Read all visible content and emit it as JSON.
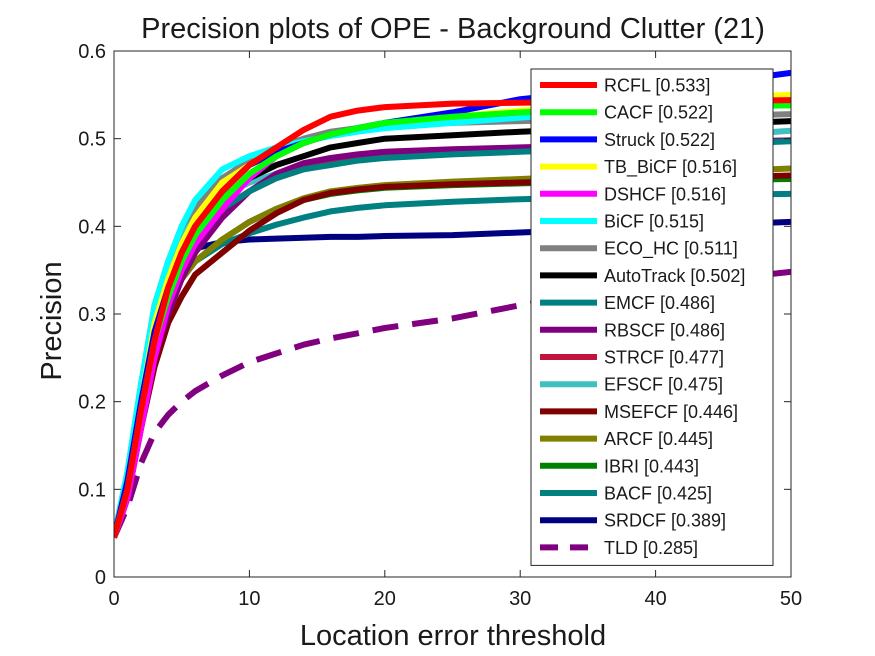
{
  "chart_data": {
    "type": "line",
    "title": "Precision plots of OPE - Background Clutter (21)",
    "xlabel": "Location error threshold",
    "ylabel": "Precision",
    "xlim": [
      0,
      50
    ],
    "ylim": [
      0,
      0.6
    ],
    "xticks": [
      "0",
      "10",
      "20",
      "30",
      "40",
      "50"
    ],
    "yticks": [
      "0",
      "0.1",
      "0.2",
      "0.3",
      "0.4",
      "0.5",
      "0.6"
    ],
    "xtick_values": [
      0,
      10,
      20,
      30,
      40,
      50
    ],
    "ytick_values": [
      0,
      0.1,
      0.2,
      0.3,
      0.4,
      0.5,
      0.6
    ],
    "grid": false,
    "legend_position": "top-right",
    "series": [
      {
        "name": "RCFL [0.533]",
        "color": "#ff0000",
        "dashed": false,
        "x": [
          0,
          1,
          2,
          3,
          4,
          5,
          6,
          8,
          10,
          12,
          14,
          16,
          18,
          20,
          25,
          30,
          35,
          40,
          45,
          50
        ],
        "y": [
          0.045,
          0.1,
          0.19,
          0.27,
          0.33,
          0.37,
          0.4,
          0.44,
          0.47,
          0.49,
          0.51,
          0.525,
          0.532,
          0.536,
          0.54,
          0.541,
          0.542,
          0.543,
          0.543,
          0.544
        ]
      },
      {
        "name": "CACF [0.522]",
        "color": "#00ff00",
        "dashed": false,
        "x": [
          0,
          1,
          2,
          3,
          4,
          5,
          6,
          8,
          10,
          12,
          14,
          16,
          18,
          20,
          25,
          30,
          35,
          40,
          45,
          50
        ],
        "y": [
          0.045,
          0.1,
          0.19,
          0.27,
          0.32,
          0.36,
          0.39,
          0.43,
          0.46,
          0.48,
          0.495,
          0.505,
          0.512,
          0.518,
          0.525,
          0.53,
          0.533,
          0.535,
          0.537,
          0.538
        ]
      },
      {
        "name": "Struck [0.522]",
        "color": "#0000ff",
        "dashed": false,
        "x": [
          0,
          1,
          2,
          3,
          4,
          5,
          6,
          8,
          10,
          12,
          14,
          16,
          18,
          20,
          25,
          30,
          35,
          40,
          45,
          50
        ],
        "y": [
          0.045,
          0.11,
          0.2,
          0.28,
          0.33,
          0.37,
          0.4,
          0.44,
          0.47,
          0.485,
          0.495,
          0.505,
          0.512,
          0.518,
          0.53,
          0.545,
          0.553,
          0.558,
          0.565,
          0.575
        ]
      },
      {
        "name": "TB_BiCF [0.516]",
        "color": "#ffff00",
        "dashed": false,
        "x": [
          0,
          1,
          2,
          3,
          4,
          5,
          6,
          8,
          10,
          12,
          14,
          16,
          18,
          20,
          25,
          30,
          35,
          40,
          45,
          50
        ],
        "y": [
          0.045,
          0.11,
          0.2,
          0.29,
          0.34,
          0.38,
          0.41,
          0.45,
          0.47,
          0.485,
          0.495,
          0.505,
          0.512,
          0.518,
          0.525,
          0.532,
          0.538,
          0.542,
          0.546,
          0.55
        ]
      },
      {
        "name": "DSHCF [0.516]",
        "color": "#ff00ff",
        "dashed": false,
        "x": [
          0,
          1,
          2,
          3,
          4,
          5,
          6,
          8,
          10,
          12,
          14,
          16,
          18,
          20,
          25,
          30,
          35,
          40,
          45,
          50
        ],
        "y": [
          0.045,
          0.09,
          0.17,
          0.25,
          0.31,
          0.35,
          0.38,
          0.42,
          0.455,
          0.48,
          0.495,
          0.505,
          0.512,
          0.518,
          0.525,
          0.53,
          0.534,
          0.537,
          0.54,
          0.543
        ]
      },
      {
        "name": "BiCF [0.515]",
        "color": "#00ffff",
        "dashed": false,
        "x": [
          0,
          1,
          2,
          3,
          4,
          5,
          6,
          8,
          10,
          12,
          14,
          16,
          18,
          20,
          25,
          30,
          35,
          40,
          45,
          50
        ],
        "y": [
          0.045,
          0.12,
          0.22,
          0.31,
          0.36,
          0.4,
          0.43,
          0.465,
          0.48,
          0.49,
          0.497,
          0.503,
          0.508,
          0.512,
          0.518,
          0.524,
          0.53,
          0.535,
          0.54,
          0.545
        ]
      },
      {
        "name": "ECO_HC [0.511]",
        "color": "#808080",
        "dashed": false,
        "x": [
          0,
          1,
          2,
          3,
          4,
          5,
          6,
          8,
          10,
          12,
          14,
          16,
          18,
          20,
          25,
          30,
          35,
          40,
          45,
          50
        ],
        "y": [
          0.045,
          0.12,
          0.22,
          0.31,
          0.36,
          0.4,
          0.42,
          0.455,
          0.475,
          0.49,
          0.5,
          0.508,
          0.512,
          0.515,
          0.518,
          0.52,
          0.522,
          0.524,
          0.526,
          0.528
        ]
      },
      {
        "name": "AutoTrack [0.502]",
        "color": "#000000",
        "dashed": false,
        "x": [
          0,
          1,
          2,
          3,
          4,
          5,
          6,
          8,
          10,
          12,
          14,
          16,
          18,
          20,
          25,
          30,
          35,
          40,
          45,
          50
        ],
        "y": [
          0.045,
          0.1,
          0.19,
          0.27,
          0.32,
          0.36,
          0.39,
          0.43,
          0.455,
          0.47,
          0.48,
          0.49,
          0.495,
          0.5,
          0.504,
          0.508,
          0.511,
          0.514,
          0.517,
          0.52
        ]
      },
      {
        "name": "EMCF [0.486]",
        "color": "#008080",
        "dashed": false,
        "x": [
          0,
          1,
          2,
          3,
          4,
          5,
          6,
          8,
          10,
          12,
          14,
          16,
          18,
          20,
          25,
          30,
          35,
          40,
          45,
          50
        ],
        "y": [
          0.045,
          0.1,
          0.19,
          0.27,
          0.32,
          0.36,
          0.39,
          0.42,
          0.44,
          0.455,
          0.465,
          0.47,
          0.475,
          0.478,
          0.482,
          0.485,
          0.488,
          0.491,
          0.494,
          0.497
        ]
      },
      {
        "name": "RBSCF [0.486]",
        "color": "#800080",
        "dashed": false,
        "x": [
          0,
          1,
          2,
          3,
          4,
          5,
          6,
          8,
          10,
          12,
          14,
          16,
          18,
          20,
          25,
          30,
          35,
          40,
          45,
          50
        ],
        "y": [
          0.045,
          0.09,
          0.17,
          0.25,
          0.3,
          0.34,
          0.37,
          0.41,
          0.44,
          0.46,
          0.472,
          0.478,
          0.482,
          0.485,
          0.488,
          0.49,
          0.492,
          0.494,
          0.496,
          0.498
        ]
      },
      {
        "name": "STRCF [0.477]",
        "color": "#c0143c",
        "dashed": false,
        "x": [
          0,
          1,
          2,
          3,
          4,
          5,
          6,
          8,
          10,
          12,
          14,
          16,
          18,
          20,
          25,
          30,
          35,
          40,
          45,
          50
        ],
        "y": [
          0.045,
          0.1,
          0.19,
          0.27,
          0.32,
          0.355,
          0.385,
          0.42,
          0.44,
          0.455,
          0.465,
          0.472,
          0.478,
          0.482,
          0.486,
          0.489,
          0.492,
          0.494,
          0.496,
          0.498
        ]
      },
      {
        "name": "EFSCF [0.475]",
        "color": "#40c0c0",
        "dashed": false,
        "x": [
          0,
          1,
          2,
          3,
          4,
          5,
          6,
          8,
          10,
          12,
          14,
          16,
          18,
          20,
          25,
          30,
          35,
          40,
          45,
          50
        ],
        "y": [
          0.045,
          0.12,
          0.22,
          0.31,
          0.36,
          0.39,
          0.41,
          0.435,
          0.45,
          0.46,
          0.467,
          0.472,
          0.476,
          0.479,
          0.484,
          0.489,
          0.494,
          0.499,
          0.504,
          0.509
        ]
      },
      {
        "name": "MSEFCF [0.446]",
        "color": "#800000",
        "dashed": false,
        "x": [
          0,
          1,
          2,
          3,
          4,
          5,
          6,
          8,
          10,
          12,
          14,
          16,
          18,
          20,
          25,
          30,
          35,
          40,
          45,
          50
        ],
        "y": [
          0.045,
          0.09,
          0.17,
          0.24,
          0.29,
          0.32,
          0.345,
          0.37,
          0.395,
          0.415,
          0.43,
          0.438,
          0.442,
          0.445,
          0.448,
          0.45,
          0.452,
          0.454,
          0.456,
          0.458
        ]
      },
      {
        "name": "ARCF [0.445]",
        "color": "#808000",
        "dashed": false,
        "x": [
          0,
          1,
          2,
          3,
          4,
          5,
          6,
          8,
          10,
          12,
          14,
          16,
          18,
          20,
          25,
          30,
          35,
          40,
          45,
          50
        ],
        "y": [
          0.045,
          0.1,
          0.18,
          0.26,
          0.31,
          0.34,
          0.36,
          0.385,
          0.405,
          0.42,
          0.432,
          0.44,
          0.444,
          0.447,
          0.451,
          0.454,
          0.457,
          0.46,
          0.463,
          0.466
        ]
      },
      {
        "name": "IBRI [0.443]",
        "color": "#008000",
        "dashed": false,
        "x": [
          0,
          1,
          2,
          3,
          4,
          5,
          6,
          8,
          10,
          12,
          14,
          16,
          18,
          20,
          25,
          30,
          35,
          40,
          45,
          50
        ],
        "y": [
          0.045,
          0.1,
          0.18,
          0.26,
          0.31,
          0.34,
          0.36,
          0.385,
          0.405,
          0.42,
          0.43,
          0.437,
          0.441,
          0.444,
          0.447,
          0.449,
          0.451,
          0.452,
          0.453,
          0.454
        ]
      },
      {
        "name": "BACF [0.425]",
        "color": "#008080",
        "dashed": false,
        "x": [
          0,
          1,
          2,
          3,
          4,
          5,
          6,
          8,
          10,
          12,
          14,
          16,
          18,
          20,
          25,
          30,
          35,
          40,
          45,
          50
        ],
        "y": [
          0.045,
          0.1,
          0.18,
          0.26,
          0.31,
          0.34,
          0.36,
          0.38,
          0.392,
          0.402,
          0.41,
          0.417,
          0.421,
          0.424,
          0.428,
          0.431,
          0.433,
          0.435,
          0.436,
          0.437
        ]
      },
      {
        "name": "SRDCF [0.389]",
        "color": "#000080",
        "dashed": false,
        "x": [
          0,
          1,
          2,
          3,
          4,
          5,
          6,
          8,
          10,
          12,
          14,
          16,
          18,
          20,
          25,
          30,
          35,
          40,
          45,
          50
        ],
        "y": [
          0.045,
          0.11,
          0.21,
          0.29,
          0.34,
          0.365,
          0.375,
          0.382,
          0.385,
          0.386,
          0.387,
          0.388,
          0.388,
          0.389,
          0.39,
          0.393,
          0.396,
          0.399,
          0.402,
          0.405
        ]
      },
      {
        "name": "TLD [0.285]",
        "color": "#800080",
        "dashed": true,
        "x": [
          0,
          1,
          2,
          3,
          4,
          5,
          6,
          8,
          10,
          12,
          14,
          16,
          18,
          20,
          25,
          30,
          35,
          40,
          45,
          50
        ],
        "y": [
          0.045,
          0.08,
          0.13,
          0.165,
          0.185,
          0.2,
          0.212,
          0.23,
          0.245,
          0.255,
          0.265,
          0.272,
          0.278,
          0.284,
          0.295,
          0.31,
          0.32,
          0.33,
          0.34,
          0.348
        ]
      }
    ]
  }
}
